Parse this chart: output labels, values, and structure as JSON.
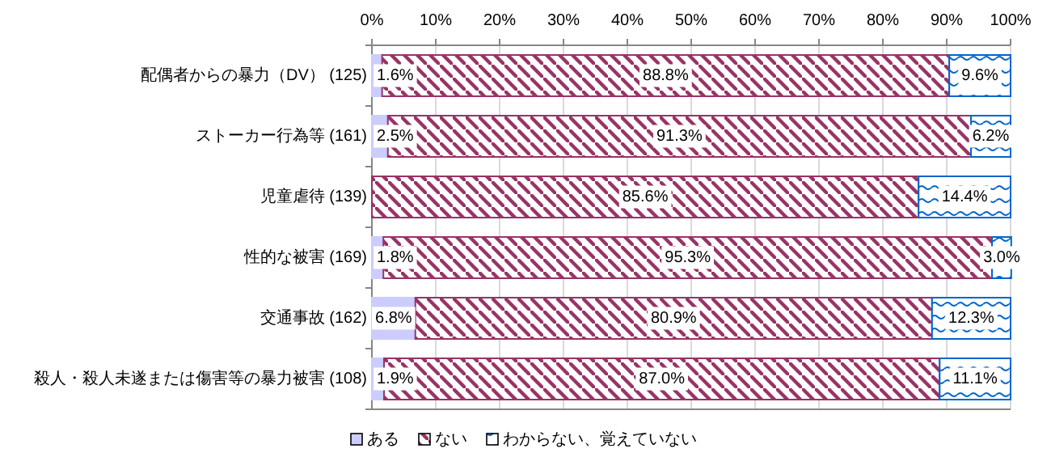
{
  "chart_data": {
    "type": "bar",
    "orientation": "horizontal",
    "stacked": true,
    "categories": [
      "配偶者からの暴力（DV） (125)",
      "ストーカー行為等 (161)",
      "児童虐待 (139)",
      "性的な被害 (169)",
      "交通事故 (162)",
      "殺人・殺人未遂または傷害等の暴力被害 (108)"
    ],
    "series": [
      {
        "name": "ある",
        "color": "#ccccff",
        "values": [
          1.6,
          2.5,
          0,
          1.8,
          6.8,
          1.9
        ],
        "value_labels": [
          "1.6%",
          "2.5%",
          null,
          "1.8%",
          "6.8%",
          "1.9%"
        ]
      },
      {
        "name": "ない",
        "color": "#993366",
        "values": [
          88.8,
          91.3,
          85.6,
          95.3,
          80.9,
          87.0
        ],
        "value_labels": [
          "88.8%",
          "91.3%",
          "85.6%",
          "95.3%",
          "80.9%",
          "87.0%"
        ]
      },
      {
        "name": "わからない、覚えていない",
        "color": "#0066cc",
        "values": [
          9.6,
          6.2,
          14.4,
          3.0,
          12.3,
          11.1
        ],
        "value_labels": [
          "9.6%",
          "6.2%",
          "14.4%",
          "3.0%",
          "12.3%",
          "11.1%"
        ]
      }
    ],
    "xlim": [
      0,
      100
    ],
    "xticks": [
      {
        "value": 0,
        "label": "0%"
      },
      {
        "value": 10,
        "label": "10%"
      },
      {
        "value": 20,
        "label": "20%"
      },
      {
        "value": 30,
        "label": "30%"
      },
      {
        "value": 40,
        "label": "40%"
      },
      {
        "value": 50,
        "label": "50%"
      },
      {
        "value": 60,
        "label": "60%"
      },
      {
        "value": 70,
        "label": "70%"
      },
      {
        "value": 80,
        "label": "80%"
      },
      {
        "value": 90,
        "label": "90%"
      },
      {
        "value": 100,
        "label": "100%"
      }
    ],
    "grid": "x",
    "legend": "bottom"
  }
}
